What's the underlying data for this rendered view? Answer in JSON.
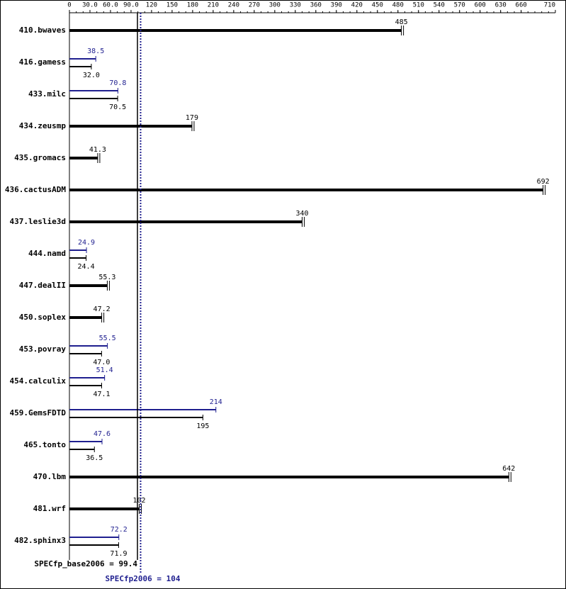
{
  "chart_data": {
    "type": "bar",
    "categories": [
      "410.bwaves",
      "416.gamess",
      "433.milc",
      "434.zeusmp",
      "435.gromacs",
      "436.cactusADM",
      "437.leslie3d",
      "444.namd",
      "447.dealII",
      "450.soplex",
      "453.povray",
      "454.calculix",
      "459.GemsFDTD",
      "465.tonto",
      "470.lbm",
      "481.wrf",
      "482.sphinx3"
    ],
    "series": [
      {
        "color": "#000000",
        "values": [
          485,
          32.0,
          70.5,
          179,
          41.3,
          692,
          340,
          24.4,
          55.3,
          47.2,
          47.0,
          47.1,
          195,
          36.5,
          642,
          102,
          71.9
        ],
        "value_labels": [
          "485",
          "32.0",
          "70.5",
          "179",
          "41.3",
          "692",
          "340",
          "24.4",
          "55.3",
          "47.2",
          "47.0",
          "47.1",
          "195",
          "36.5",
          "642",
          "102",
          "71.9"
        ]
      },
      {
        "color": "#1f1f8f",
        "values": [
          null,
          38.5,
          70.8,
          null,
          null,
          null,
          null,
          24.9,
          null,
          null,
          55.5,
          51.4,
          214,
          47.6,
          null,
          null,
          72.2
        ],
        "value_labels": [
          null,
          "38.5",
          "70.8",
          null,
          null,
          null,
          null,
          "24.9",
          null,
          null,
          "55.5",
          "51.4",
          "214",
          "47.6",
          null,
          null,
          "72.2"
        ]
      }
    ],
    "xlim": [
      0,
      710
    ],
    "xticks": [
      0,
      {
        "value": 30,
        "label": "30.0"
      },
      {
        "value": 60,
        "label": "60.0"
      },
      {
        "value": 90,
        "label": "90.0"
      },
      120,
      150,
      180,
      210,
      240,
      270,
      300,
      330,
      360,
      390,
      420,
      450,
      480,
      510,
      540,
      570,
      600,
      630,
      660,
      710
    ],
    "reference_lines": [
      {
        "label": "SPECfp_base2006 = 99.4",
        "value": 99.4,
        "color": "#000000"
      },
      {
        "label": "SPECfp2006 = 104",
        "value": 104,
        "color": "#1f1f8f"
      }
    ]
  }
}
